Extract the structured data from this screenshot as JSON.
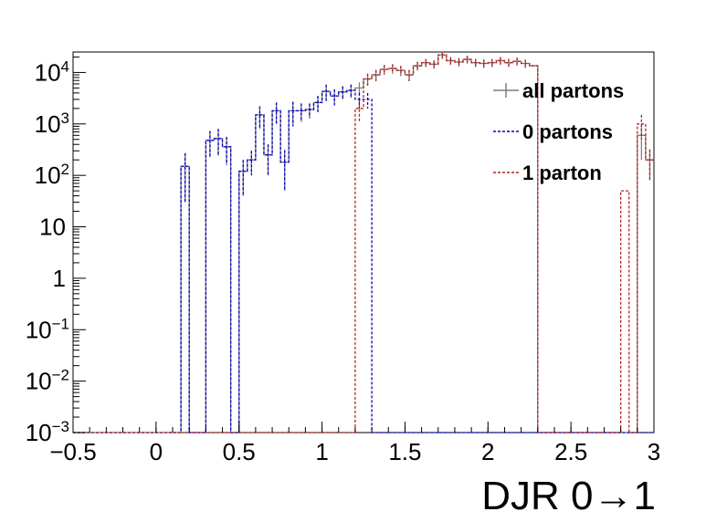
{
  "chart_data": {
    "type": "histogram",
    "title": "",
    "xlabel": "DJR 0→1",
    "ylabel": "",
    "xlim": [
      -0.5,
      3.0
    ],
    "ylim": [
      0.001,
      25000
    ],
    "yscale": "log",
    "grid": false,
    "legend_position": "top-right",
    "x_ticks": [
      "−0.5",
      "0",
      "0.5",
      "1",
      "1.5",
      "2",
      "2.5",
      "3"
    ],
    "x_tick_values": [
      -0.5,
      0,
      0.5,
      1,
      1.5,
      2,
      2.5,
      3
    ],
    "y_ticks": [
      {
        "value": 0.001,
        "base": "10",
        "exp": "−3"
      },
      {
        "value": 0.01,
        "base": "10",
        "exp": "−2"
      },
      {
        "value": 0.1,
        "base": "10",
        "exp": "−1"
      },
      {
        "value": 1,
        "base": "1",
        "exp": ""
      },
      {
        "value": 10,
        "base": "10",
        "exp": ""
      },
      {
        "value": 100,
        "base": "10",
        "exp": "2"
      },
      {
        "value": 1000,
        "base": "10",
        "exp": "3"
      },
      {
        "value": 10000,
        "base": "10",
        "exp": "4"
      }
    ],
    "bin_edges_start": -0.5,
    "bin_width": 0.05,
    "series": [
      {
        "name": "all partons",
        "color": "#7f7f7f",
        "style": "solid",
        "bins": [
          {
            "x": 0.15,
            "y": 150,
            "err": 120
          },
          {
            "x": 0.2,
            "y": 0.001
          },
          {
            "x": 0.25,
            "y": 0.001
          },
          {
            "x": 0.3,
            "y": 480,
            "err": 250
          },
          {
            "x": 0.35,
            "y": 520,
            "err": 280
          },
          {
            "x": 0.4,
            "y": 360,
            "err": 200
          },
          {
            "x": 0.45,
            "y": 0.001
          },
          {
            "x": 0.5,
            "y": 120,
            "err": 80
          },
          {
            "x": 0.55,
            "y": 200,
            "err": 100
          },
          {
            "x": 0.6,
            "y": 1500,
            "err": 700
          },
          {
            "x": 0.65,
            "y": 250,
            "err": 150
          },
          {
            "x": 0.7,
            "y": 1800,
            "err": 800
          },
          {
            "x": 0.75,
            "y": 180,
            "err": 130
          },
          {
            "x": 0.8,
            "y": 1800,
            "err": 900
          },
          {
            "x": 0.85,
            "y": 1800,
            "err": 700
          },
          {
            "x": 0.9,
            "y": 1900,
            "err": 600
          },
          {
            "x": 0.95,
            "y": 2600,
            "err": 900
          },
          {
            "x": 1.0,
            "y": 4300,
            "err": 1500
          },
          {
            "x": 1.05,
            "y": 3500,
            "err": 1200
          },
          {
            "x": 1.1,
            "y": 4200,
            "err": 1200
          },
          {
            "x": 1.15,
            "y": 4500,
            "err": 1300
          },
          {
            "x": 1.2,
            "y": 5000,
            "err": 1400
          },
          {
            "x": 1.25,
            "y": 7500,
            "err": 2000
          },
          {
            "x": 1.3,
            "y": 9000,
            "err": 2200
          },
          {
            "x": 1.35,
            "y": 11500,
            "err": 2500
          },
          {
            "x": 1.4,
            "y": 12000,
            "err": 2500
          },
          {
            "x": 1.45,
            "y": 11000,
            "err": 2400
          },
          {
            "x": 1.5,
            "y": 9000,
            "err": 2200
          },
          {
            "x": 1.55,
            "y": 13500,
            "err": 2600
          },
          {
            "x": 1.6,
            "y": 15500,
            "err": 2800
          },
          {
            "x": 1.65,
            "y": 14500,
            "err": 2700
          },
          {
            "x": 1.7,
            "y": 22000,
            "err": 3500
          },
          {
            "x": 1.75,
            "y": 17000,
            "err": 3000
          },
          {
            "x": 1.8,
            "y": 16000,
            "err": 3000
          },
          {
            "x": 1.85,
            "y": 18000,
            "err": 3100
          },
          {
            "x": 1.9,
            "y": 15500,
            "err": 2800
          },
          {
            "x": 1.95,
            "y": 15000,
            "err": 2800
          },
          {
            "x": 2.0,
            "y": 15500,
            "err": 2800
          },
          {
            "x": 2.05,
            "y": 17000,
            "err": 3000
          },
          {
            "x": 2.1,
            "y": 15500,
            "err": 2800
          },
          {
            "x": 2.15,
            "y": 16500,
            "err": 2900
          },
          {
            "x": 2.2,
            "y": 15000,
            "err": 2800
          },
          {
            "x": 2.25,
            "y": 13500,
            "err": 0
          },
          {
            "x": 2.8,
            "y": 0.001
          },
          {
            "x": 2.85,
            "y": 0.001
          },
          {
            "x": 2.9,
            "y": 600,
            "err": 400
          },
          {
            "x": 2.95,
            "y": 200,
            "err": 120
          }
        ]
      },
      {
        "name": "0 partons",
        "color": "#0000cc",
        "style": "dashed",
        "bins": [
          {
            "x": 0.15,
            "y": 150,
            "err": 120
          },
          {
            "x": 0.3,
            "y": 480,
            "err": 250
          },
          {
            "x": 0.35,
            "y": 520,
            "err": 280
          },
          {
            "x": 0.4,
            "y": 360,
            "err": 200
          },
          {
            "x": 0.5,
            "y": 120,
            "err": 80
          },
          {
            "x": 0.55,
            "y": 200,
            "err": 100
          },
          {
            "x": 0.6,
            "y": 1500,
            "err": 700
          },
          {
            "x": 0.65,
            "y": 250,
            "err": 150
          },
          {
            "x": 0.7,
            "y": 1800,
            "err": 800
          },
          {
            "x": 0.75,
            "y": 180,
            "err": 130
          },
          {
            "x": 0.8,
            "y": 1800,
            "err": 900
          },
          {
            "x": 0.85,
            "y": 1800,
            "err": 700
          },
          {
            "x": 0.9,
            "y": 1900,
            "err": 600
          },
          {
            "x": 0.95,
            "y": 2600,
            "err": 900
          },
          {
            "x": 1.0,
            "y": 4300,
            "err": 1500
          },
          {
            "x": 1.05,
            "y": 3500,
            "err": 1200
          },
          {
            "x": 1.1,
            "y": 4200,
            "err": 1200
          },
          {
            "x": 1.15,
            "y": 4500,
            "err": 1300
          },
          {
            "x": 1.2,
            "y": 3000,
            "err": 1000
          },
          {
            "x": 1.25,
            "y": 3000,
            "err": 1000
          }
        ]
      },
      {
        "name": "1 parton",
        "color": "#b22222",
        "style": "dashed",
        "bins": [
          {
            "x": 1.2,
            "y": 2000,
            "err": 900
          },
          {
            "x": 1.25,
            "y": 7500,
            "err": 2000
          },
          {
            "x": 1.3,
            "y": 9000,
            "err": 2200
          },
          {
            "x": 1.35,
            "y": 11500,
            "err": 2500
          },
          {
            "x": 1.4,
            "y": 12000,
            "err": 2500
          },
          {
            "x": 1.45,
            "y": 11000,
            "err": 2400
          },
          {
            "x": 1.5,
            "y": 9000,
            "err": 2200
          },
          {
            "x": 1.55,
            "y": 13500,
            "err": 2600
          },
          {
            "x": 1.6,
            "y": 15500,
            "err": 2800
          },
          {
            "x": 1.65,
            "y": 14500,
            "err": 2700
          },
          {
            "x": 1.7,
            "y": 22000,
            "err": 3500
          },
          {
            "x": 1.75,
            "y": 17000,
            "err": 3000
          },
          {
            "x": 1.8,
            "y": 16000,
            "err": 3000
          },
          {
            "x": 1.85,
            "y": 18000,
            "err": 3100
          },
          {
            "x": 1.9,
            "y": 15500,
            "err": 2800
          },
          {
            "x": 1.95,
            "y": 15000,
            "err": 2800
          },
          {
            "x": 2.0,
            "y": 15500,
            "err": 2800
          },
          {
            "x": 2.05,
            "y": 17000,
            "err": 3000
          },
          {
            "x": 2.1,
            "y": 15500,
            "err": 2800
          },
          {
            "x": 2.15,
            "y": 16500,
            "err": 2900
          },
          {
            "x": 2.2,
            "y": 15000,
            "err": 2800
          },
          {
            "x": 2.25,
            "y": 13500,
            "err": 0
          },
          {
            "x": 2.8,
            "y": 50,
            "err": 0
          },
          {
            "x": 2.9,
            "y": 1000,
            "err": 500
          },
          {
            "x": 2.95,
            "y": 200,
            "err": 120
          }
        ]
      }
    ]
  },
  "legend": {
    "items": [
      {
        "label": "all partons",
        "color": "#7f7f7f",
        "style": "solid"
      },
      {
        "label": "0 partons",
        "color": "#0000cc",
        "style": "dashed"
      },
      {
        "label": "1 parton",
        "color": "#b22222",
        "style": "dashed"
      }
    ]
  }
}
